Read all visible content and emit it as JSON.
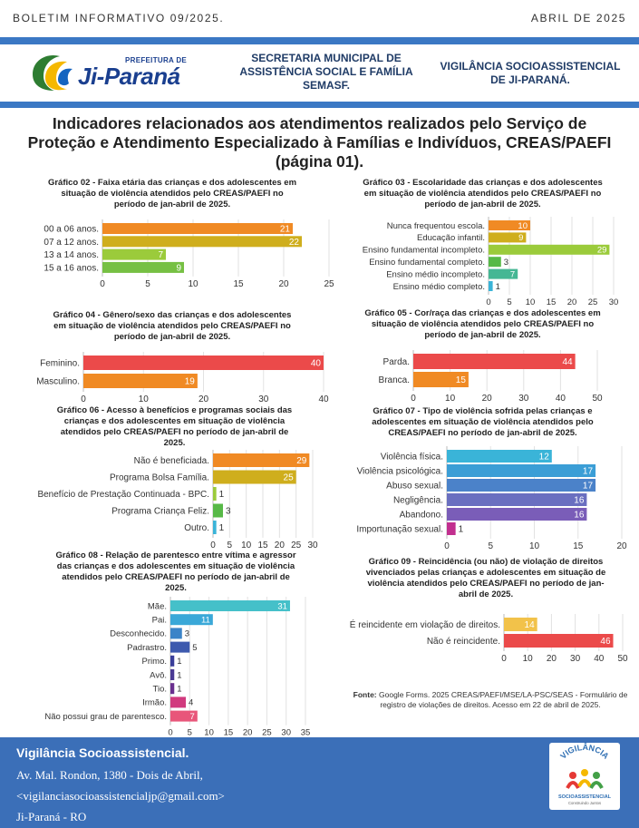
{
  "header": {
    "bulletin": "BOLETIM INFORMATIVO 09/2025.",
    "date": "ABRIL DE 2025",
    "logo_sub": "PREFEITURA DE",
    "logo_main": "Ji-Paraná",
    "secretaria": [
      "SECRETARIA MUNICIPAL DE",
      "ASSISTÊNCIA SOCIAL E FAMÍLIA",
      "SEMASF."
    ],
    "vigilancia": [
      "VIGILÂNCIA SOCIOASSISTENCIAL",
      "DE JI-PARANÁ."
    ],
    "accent_color": "#3b78c4"
  },
  "title": [
    "Indicadores relacionados aos atendimentos realizados pelo Serviço de",
    "Proteção e Atendimento Especializado à Famílias e Indivíduos, CREAS/PAEFI",
    "(página 01)."
  ],
  "chart_data": [
    {
      "type": "bar",
      "orientation": "horizontal",
      "title": [
        "Gráfico 02 - Faixa etária das crianças e dos adolescentes em",
        "situação de violência atendidos pelo CREAS/PAEFI no",
        "período de jan-abril de 2025."
      ],
      "categories": [
        "00 a 06 anos.",
        "07 a 12 anos.",
        "13 a 14 anos.",
        "15 a 16 anos."
      ],
      "values": [
        21,
        22,
        7,
        9
      ],
      "colors": [
        "#f08a24",
        "#cfae1d",
        "#9bcb3b",
        "#76c043"
      ],
      "xlim": [
        0,
        25
      ],
      "xticks": [
        0,
        5,
        10,
        15,
        20,
        25
      ]
    },
    {
      "type": "bar",
      "orientation": "horizontal",
      "title": [
        "Gráfico 03 - Escolaridade das crianças e dos adolescentes",
        "em situação de violência atendidos pelo CREAS/PAEFI no",
        "período de jan-abril de 2025."
      ],
      "categories": [
        "Nunca frequentou escola.",
        "Educação infantil.",
        "Ensino fundamental incompleto.",
        "Ensino fundamental completo.",
        "Ensino médio incompleto.",
        "Ensino médio completo."
      ],
      "values": [
        10,
        9,
        29,
        3,
        7,
        1
      ],
      "colors": [
        "#f08a24",
        "#cfae1d",
        "#9bcb3b",
        "#57b947",
        "#45b794",
        "#3ab4d8"
      ],
      "xlim": [
        0,
        30
      ],
      "xticks": [
        0,
        5,
        10,
        15,
        20,
        25,
        30
      ]
    },
    {
      "type": "bar",
      "orientation": "horizontal",
      "title": [
        "Gráfico 04 - Gênero/sexo das crianças e dos adolescentes",
        "em situação de violência atendidos pelo CREAS/PAEFI no",
        "período de jan-abril de 2025."
      ],
      "categories": [
        "Feminino.",
        "Masculino."
      ],
      "values": [
        40,
        19
      ],
      "colors": [
        "#eb4a4a",
        "#f08a24"
      ],
      "xlim": [
        0,
        40
      ],
      "xticks": [
        0,
        10,
        20,
        30,
        40
      ]
    },
    {
      "type": "bar",
      "orientation": "horizontal",
      "title": [
        "Gráfico 05 - Cor/raça das crianças e dos adolescentes em",
        "situação de violência atendidos pelo CREAS/PAEFI no",
        "período de jan-abril de 2025."
      ],
      "categories": [
        "Parda.",
        "Branca."
      ],
      "values": [
        44,
        15
      ],
      "colors": [
        "#eb4a4a",
        "#f08a24"
      ],
      "xlim": [
        0,
        50
      ],
      "xticks": [
        0,
        10,
        20,
        30,
        40,
        50
      ]
    },
    {
      "type": "bar",
      "orientation": "horizontal",
      "title": [
        "Gráfico 06 - Acesso à benefícios e programas sociais das",
        "crianças e dos adolescentes em situação de violência",
        "atendidos pelo CREAS/PAEFI no período de jan-abril de",
        "2025."
      ],
      "categories": [
        "Não é beneficiada.",
        "Programa Bolsa Família.",
        "Benefício de Prestação Continuada - BPC.",
        "Programa Criança Feliz.",
        "Outro."
      ],
      "values": [
        29,
        25,
        1,
        3,
        1
      ],
      "colors": [
        "#f08a24",
        "#cfae1d",
        "#9bcb3b",
        "#57b947",
        "#3ab4d8"
      ],
      "xlim": [
        0,
        30
      ],
      "xticks": [
        0,
        5,
        10,
        15,
        20,
        25,
        30
      ]
    },
    {
      "type": "bar",
      "orientation": "horizontal",
      "title": [
        "Gráfico 07 - Tipo de violência sofrida pelas crianças e",
        "adolescentes em situação de violência atendidos pelo",
        "CREAS/PAEFI no período de jan-abril de 2025."
      ],
      "categories": [
        "Violência física.",
        "Violência psicológica.",
        "Abuso sexual.",
        "Negligência.",
        "Abandono.",
        "Importunação sexual."
      ],
      "values": [
        12,
        17,
        17,
        16,
        16,
        1
      ],
      "colors": [
        "#3ab4d8",
        "#3b9ed6",
        "#4b82c9",
        "#6a6fc0",
        "#7a5db8",
        "#c22f8f"
      ],
      "xlim": [
        0,
        20
      ],
      "xticks": [
        0,
        5,
        10,
        15,
        20
      ]
    },
    {
      "type": "bar",
      "orientation": "horizontal",
      "title": [
        "Gráfico 08 - Relação de parentesco entre vítima e agressor",
        "das crianças e dos adolescentes em situação de violência",
        "atendidos pelo CREAS/PAEFI no período de jan-abril de",
        "2025."
      ],
      "categories": [
        "Mãe.",
        "Pai.",
        "Desconhecido.",
        "Padrastro.",
        "Primo.",
        "Avô.",
        "Tio.",
        "Irmão.",
        "Não possui grau de parentesco."
      ],
      "values": [
        31,
        11,
        3,
        5,
        1,
        1,
        1,
        4,
        7
      ],
      "colors": [
        "#45c0c9",
        "#3aa8d8",
        "#3b84c8",
        "#3e5aae",
        "#3a3f9a",
        "#4a3a94",
        "#6a2f8f",
        "#d13a7e",
        "#e8567a"
      ],
      "xlim": [
        0,
        35
      ],
      "xticks": [
        0,
        5,
        10,
        15,
        20,
        25,
        30,
        35
      ]
    },
    {
      "type": "bar",
      "orientation": "horizontal",
      "title": [
        "Gráfico 09 - Reincidência (ou não) de violação de direitos",
        "vivenciados pelas crianças e adolescentes em situação de",
        "violência atendidos pelo CREAS/PAEFI no período de jan-",
        "abril de 2025."
      ],
      "categories": [
        "É reincidente em violação de direitos.",
        "Não é reincidente."
      ],
      "values": [
        14,
        46
      ],
      "colors": [
        "#f2c24a",
        "#eb4a4a"
      ],
      "xlim": [
        0,
        50
      ],
      "xticks": [
        0,
        10,
        20,
        30,
        40,
        50
      ]
    }
  ],
  "source": {
    "label": "Fonte:",
    "text": "Google Forms. 2025 CREAS/PAEFI/MSE/LA-PSC/SEAS - Formulário de registro de violações de direitos. Acesso em 22 de abril de 2025."
  },
  "footer": {
    "heading": "Vigilância Socioassistencial.",
    "address": "Av. Mal. Rondon, 1380 - Dois de Abril,",
    "email": "<vigilanciasocioassistencialjp@gmail.com>",
    "city": "Ji-Paraná - RO",
    "badge_top": "VIGILÂNCIA",
    "badge_bottom": "SOCIOASSISTENCIAL",
    "badge_tag": "Construindo Juntos"
  }
}
